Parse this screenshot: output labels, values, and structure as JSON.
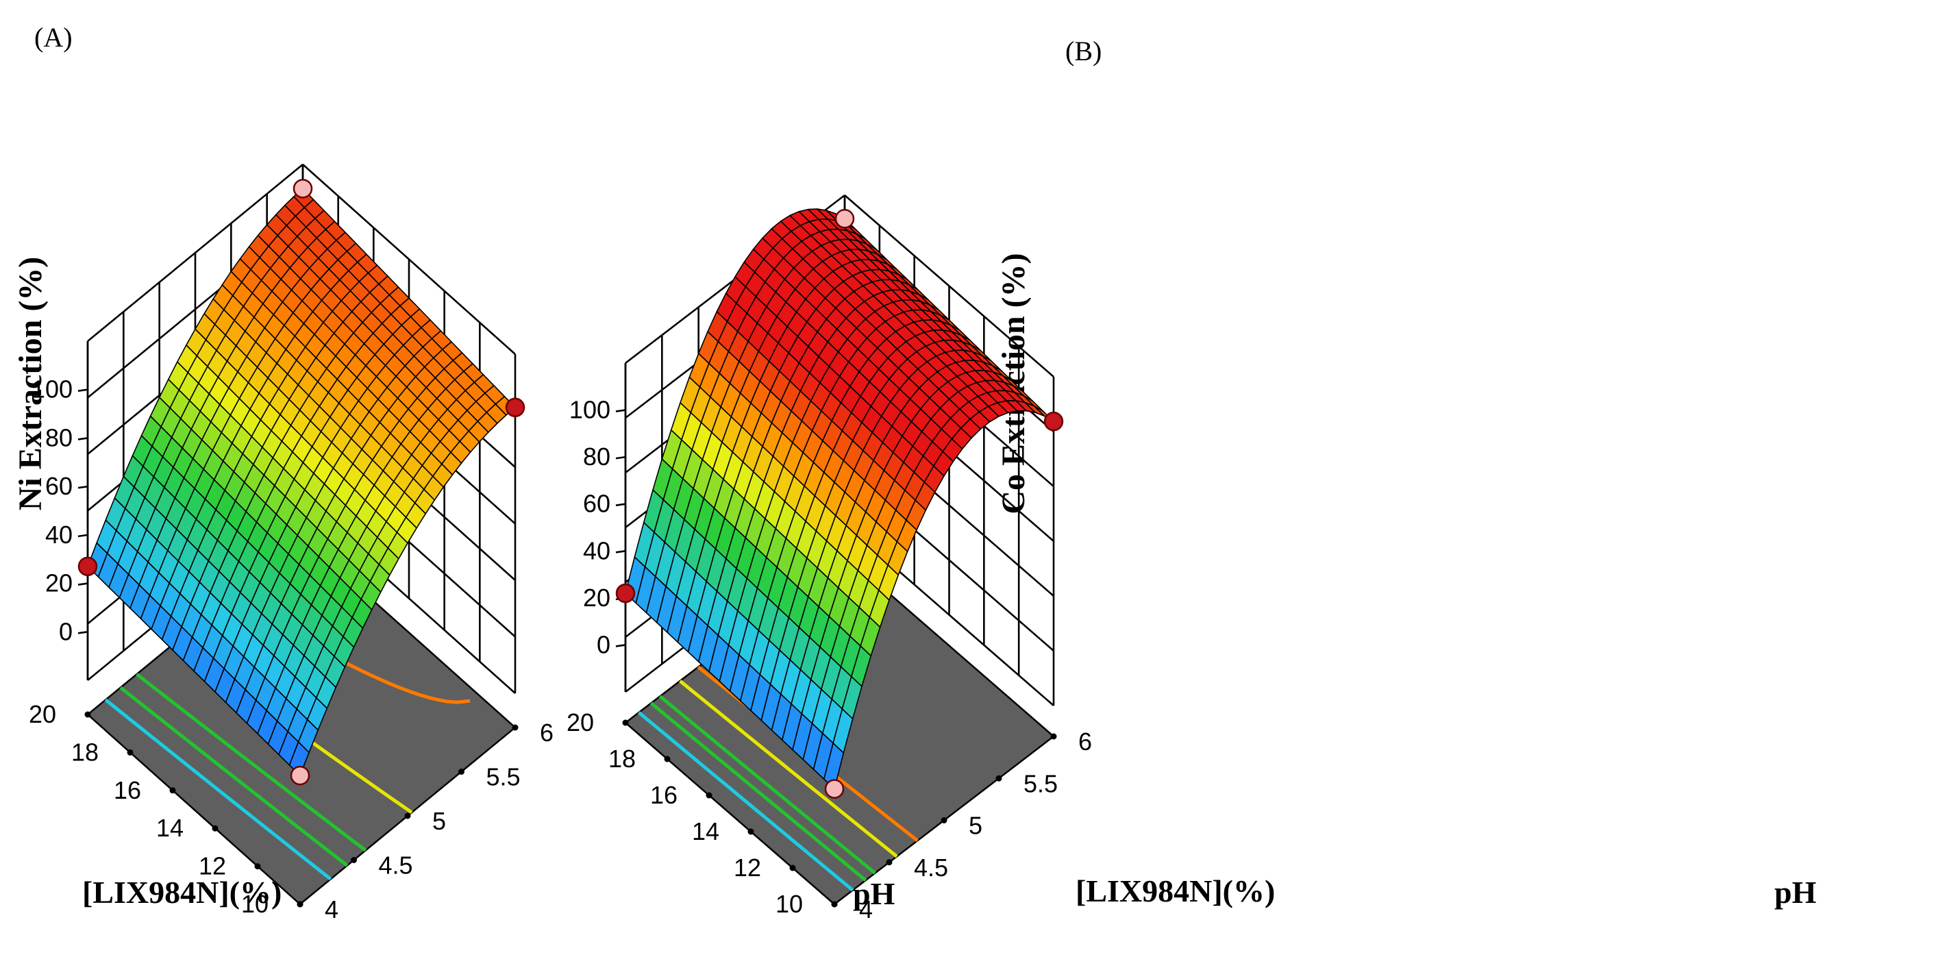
{
  "chart_data": [
    {
      "type": "surface3d",
      "panel_label": "(A)",
      "zlabel": "Ni Extraction (%)",
      "xlabel": "[LIX984N](%)",
      "ylabel": "pH",
      "x_ticks": [
        "20",
        "18",
        "16",
        "14",
        "12",
        "10"
      ],
      "y_ticks": [
        "4",
        "4.5",
        "5",
        "5.5",
        "6"
      ],
      "z_ticks": [
        "0",
        "20",
        "40",
        "60",
        "80",
        "100"
      ],
      "xlim": [
        10,
        20
      ],
      "ylim": [
        4,
        6
      ],
      "zlim": [
        -20,
        120
      ],
      "corner_values": {
        "pH4_lix10": 19,
        "pH4_lix20": 27,
        "pH6_lix10": 98,
        "pH6_lix20": 110
      },
      "curvature": 20,
      "design_points": [
        {
          "ph": 4,
          "lix": 20,
          "value": 27,
          "color": "#c4161c"
        },
        {
          "ph": 6,
          "lix": 10,
          "value": 98,
          "color": "#c4161c"
        },
        {
          "ph": 4,
          "lix": 10,
          "value": 19,
          "color": "#f5b9b9"
        },
        {
          "ph": 6,
          "lix": 20,
          "value": 110,
          "color": "#f5b9b9"
        }
      ],
      "contours": [
        {
          "level": 40,
          "color": "#1ecbe1"
        },
        {
          "level": 50,
          "color": "#22c32e"
        },
        {
          "level": 60,
          "color": "#22c32e"
        },
        {
          "level": 80,
          "color": "#e6e600"
        },
        {
          "level": 100,
          "color": "#ff7a00"
        }
      ]
    },
    {
      "type": "surface3d",
      "panel_label": "(B)",
      "zlabel": "Co Extraction (%)",
      "xlabel": "[LIX984N](%)",
      "ylabel": "pH",
      "x_ticks": [
        "20",
        "18",
        "16",
        "14",
        "12",
        "10"
      ],
      "y_ticks": [
        "4",
        "4.5",
        "5",
        "5.5",
        "6"
      ],
      "z_ticks": [
        "0",
        "20",
        "40",
        "60",
        "80",
        "100"
      ],
      "xlim": [
        10,
        20
      ],
      "ylim": [
        4,
        6
      ],
      "zlim": [
        -20,
        120
      ],
      "corner_values": {
        "pH4_lix10": 16,
        "pH4_lix20": 22,
        "pH6_lix10": 101,
        "pH6_lix20": 110
      },
      "curvature": 55,
      "design_points": [
        {
          "ph": 4,
          "lix": 20,
          "value": 22,
          "color": "#c4161c"
        },
        {
          "ph": 6,
          "lix": 10,
          "value": 101,
          "color": "#c4161c"
        },
        {
          "ph": 4,
          "lix": 10,
          "value": 16,
          "color": "#f5b9b9"
        },
        {
          "ph": 6,
          "lix": 20,
          "value": 110,
          "color": "#f5b9b9"
        }
      ],
      "contours": [
        {
          "level": 40,
          "color": "#1ecbe1"
        },
        {
          "level": 55,
          "color": "#22c32e"
        },
        {
          "level": 65,
          "color": "#22c32e"
        },
        {
          "level": 85,
          "color": "#e6e600"
        },
        {
          "level": 100,
          "color": "#ff7a00"
        }
      ]
    }
  ]
}
